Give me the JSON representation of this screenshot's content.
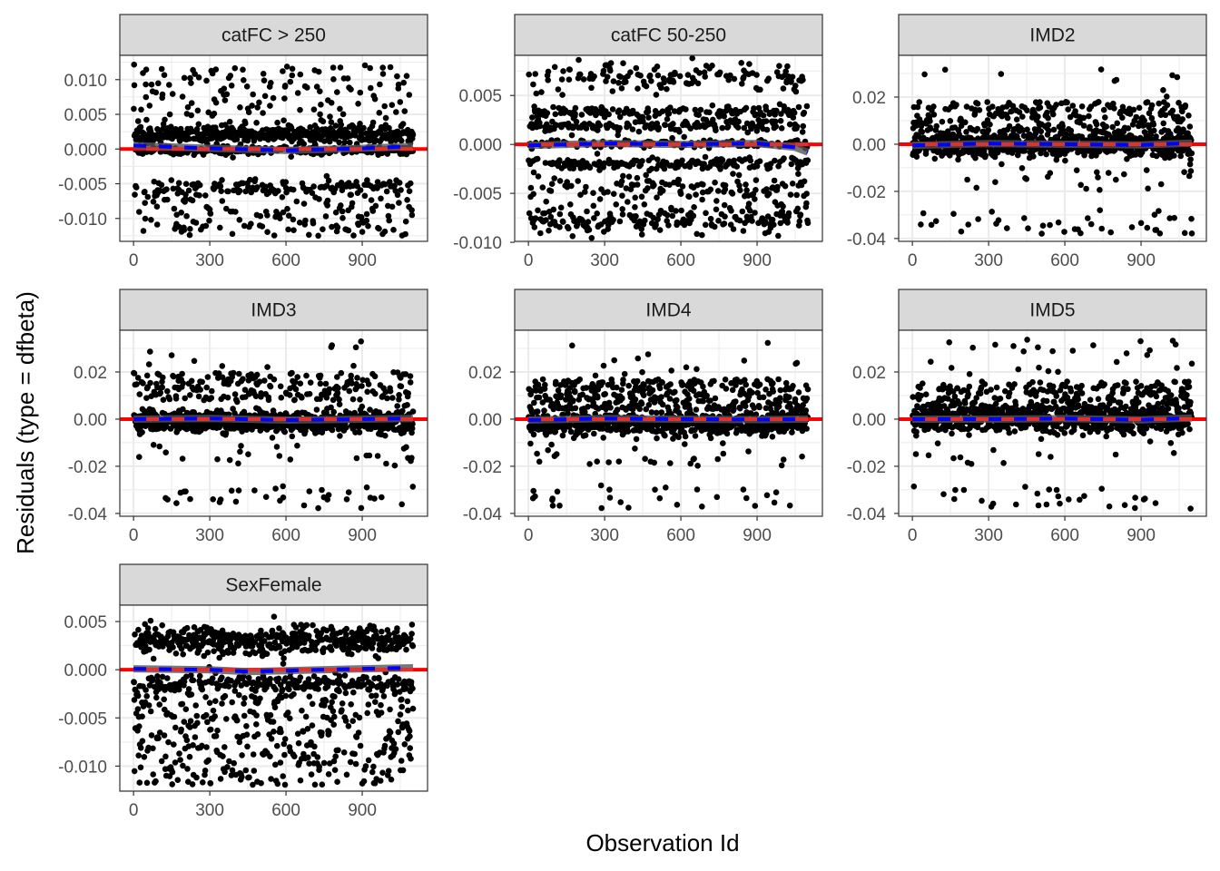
{
  "chart_data": {
    "type": "scatter",
    "xlabel": "Observation Id",
    "ylabel": "Residuals (type = dfbeta)",
    "colors": {
      "points": "#000000",
      "reference_line": "#ff0000",
      "smooth_dashed_red": "#e03030",
      "smooth_dashed_blue": "#0000ff",
      "ribbon": "#555555",
      "strip_fill": "#d9d9d9",
      "grid": "#ebebeb"
    },
    "n_observations": 1100,
    "xlim": [
      -54,
      1157
    ],
    "x_ticks": [
      0,
      300,
      600,
      900
    ],
    "x_tick_labels": [
      "0",
      "300",
      "600",
      "900"
    ],
    "panels": [
      {
        "title": "catFC > 250",
        "ylim": [
          -0.0133,
          0.0135
        ],
        "y_ticks": [
          -0.01,
          -0.005,
          0,
          0.005,
          0.01
        ],
        "y_tick_labels": [
          "-0.010",
          "-0.005",
          "0.000",
          "0.005",
          "0.010"
        ],
        "point_bands": [
          {
            "y": 0.002,
            "sd": 0.0006,
            "w": 0.38
          },
          {
            "y": -0.0002,
            "sd": 0.0003,
            "w": 0.22
          },
          {
            "lo": 0.003,
            "hi": 0.0122,
            "w": 0.13
          },
          {
            "y": -0.0055,
            "sd": 0.0006,
            "w": 0.08
          },
          {
            "lo": -0.0125,
            "hi": -0.0045,
            "w": 0.19
          }
        ],
        "smooth": [
          [
            0,
            0.0005
          ],
          [
            300,
            0.0001
          ],
          [
            600,
            -0.0002
          ],
          [
            900,
            0.0001
          ],
          [
            1100,
            0.0004
          ]
        ]
      },
      {
        "title": "catFC 50-250",
        "ylim": [
          -0.0099,
          0.0091
        ],
        "y_ticks": [
          -0.01,
          -0.005,
          0,
          0.005
        ],
        "y_tick_labels": [
          "-0.010",
          "-0.005",
          "0.000",
          "0.005"
        ],
        "point_bands": [
          {
            "y": 0.0068,
            "sd": 0.0008,
            "w": 0.12
          },
          {
            "y": 0.0033,
            "sd": 0.0003,
            "w": 0.14
          },
          {
            "y": 0.0019,
            "sd": 0.0003,
            "w": 0.14
          },
          {
            "y": 0.0001,
            "sd": 0.0002,
            "w": 0.12
          },
          {
            "y": -0.002,
            "sd": 0.0003,
            "w": 0.16
          },
          {
            "y": -0.0045,
            "sd": 0.0008,
            "w": 0.14
          },
          {
            "y": -0.0078,
            "sd": 0.0007,
            "w": 0.18
          }
        ],
        "smooth": [
          [
            0,
            -0.0001
          ],
          [
            300,
            0.0001
          ],
          [
            600,
            0.0
          ],
          [
            900,
            0.0001
          ],
          [
            1050,
            -0.0003
          ],
          [
            1100,
            -0.0008
          ]
        ]
      },
      {
        "title": "IMD2",
        "ylim": [
          -0.0412,
          0.0377
        ],
        "y_ticks": [
          -0.04,
          -0.02,
          0,
          0.02
        ],
        "y_tick_labels": [
          "-0.04",
          "-0.02",
          "0.00",
          "0.02"
        ],
        "point_bands": [
          {
            "y": 0.0,
            "sd": 0.0025,
            "w": 0.72
          },
          {
            "lo": 0.005,
            "hi": 0.018,
            "w": 0.22
          },
          {
            "lo": 0.02,
            "hi": 0.034,
            "w": 0.01
          },
          {
            "lo": -0.038,
            "hi": -0.028,
            "w": 0.03
          },
          {
            "lo": -0.02,
            "hi": -0.01,
            "w": 0.02
          }
        ],
        "smooth": [
          [
            0,
            -0.0005
          ],
          [
            300,
            0.0003
          ],
          [
            600,
            0.0
          ],
          [
            900,
            -0.0003
          ],
          [
            1100,
            0.0005
          ]
        ]
      },
      {
        "title": "IMD3",
        "ylim": [
          -0.0412,
          0.0377
        ],
        "y_ticks": [
          -0.04,
          -0.02,
          0,
          0.02
        ],
        "y_tick_labels": [
          "-0.04",
          "-0.02",
          "0.00",
          "0.02"
        ],
        "point_bands": [
          {
            "y": -0.001,
            "sd": 0.0022,
            "w": 0.74
          },
          {
            "lo": 0.008,
            "hi": 0.02,
            "w": 0.19
          },
          {
            "lo": 0.022,
            "hi": 0.034,
            "w": 0.01
          },
          {
            "lo": -0.038,
            "hi": -0.028,
            "w": 0.03
          },
          {
            "lo": -0.02,
            "hi": -0.01,
            "w": 0.03
          }
        ],
        "smooth": [
          [
            0,
            0.0
          ],
          [
            300,
            0.0003
          ],
          [
            600,
            -0.0004
          ],
          [
            900,
            0.0
          ],
          [
            1100,
            0.0003
          ]
        ]
      },
      {
        "title": "IMD4",
        "ylim": [
          -0.0412,
          0.0377
        ],
        "y_ticks": [
          -0.04,
          -0.02,
          0,
          0.02
        ],
        "y_tick_labels": [
          "-0.04",
          "-0.02",
          "0.00",
          "0.02"
        ],
        "point_bands": [
          {
            "y": -0.002,
            "sd": 0.0025,
            "w": 0.62
          },
          {
            "lo": 0.004,
            "hi": 0.017,
            "w": 0.31
          },
          {
            "lo": 0.018,
            "hi": 0.034,
            "w": 0.02
          },
          {
            "lo": -0.038,
            "hi": -0.028,
            "w": 0.03
          },
          {
            "lo": -0.02,
            "hi": -0.01,
            "w": 0.02
          }
        ],
        "smooth": [
          [
            0,
            -0.0004
          ],
          [
            300,
            0.0002
          ],
          [
            600,
            0.0
          ],
          [
            900,
            -0.0002
          ],
          [
            1100,
            0.0
          ]
        ]
      },
      {
        "title": "IMD5",
        "ylim": [
          -0.0412,
          0.0377
        ],
        "y_ticks": [
          -0.04,
          -0.02,
          0,
          0.02
        ],
        "y_tick_labels": [
          "-0.04",
          "-0.02",
          "0.00",
          "0.02"
        ],
        "point_bands": [
          {
            "y": 0.0,
            "sd": 0.0028,
            "w": 0.7
          },
          {
            "lo": 0.004,
            "hi": 0.016,
            "w": 0.24
          },
          {
            "lo": 0.018,
            "hi": 0.034,
            "w": 0.02
          },
          {
            "lo": -0.038,
            "hi": -0.028,
            "w": 0.03
          },
          {
            "lo": -0.02,
            "hi": -0.01,
            "w": 0.01
          }
        ],
        "smooth": [
          [
            0,
            0.0
          ],
          [
            300,
            0.0
          ],
          [
            600,
            0.0002
          ],
          [
            900,
            -0.0003
          ],
          [
            1100,
            0.0005
          ]
        ]
      },
      {
        "title": "SexFemale",
        "ylim": [
          -0.0126,
          0.0067
        ],
        "y_ticks": [
          -0.01,
          -0.005,
          0,
          0.005
        ],
        "y_tick_labels": [
          "-0.010",
          "-0.005",
          "0.000",
          "0.005"
        ],
        "point_bands": [
          {
            "y": 0.003,
            "sd": 0.0007,
            "w": 0.45
          },
          {
            "y": -0.0015,
            "sd": 0.0005,
            "w": 0.22
          },
          {
            "lo": -0.007,
            "hi": -0.0025,
            "w": 0.17
          },
          {
            "lo": -0.012,
            "hi": -0.007,
            "w": 0.16
          }
        ],
        "smooth": [
          [
            0,
            0.0001
          ],
          [
            300,
            0.0
          ],
          [
            450,
            -0.0002
          ],
          [
            600,
            -0.0001
          ],
          [
            900,
            0.0001
          ],
          [
            1100,
            0.0002
          ]
        ]
      }
    ]
  }
}
